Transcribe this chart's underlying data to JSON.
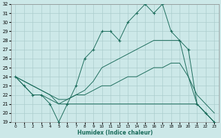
{
  "bg_color": "#cce8e8",
  "grid_color": "#aacccc",
  "line_color": "#1a6b5a",
  "xlabel": "Humidex (Indice chaleur)",
  "ylim": [
    19,
    32
  ],
  "xlim": [
    -0.5,
    23.5
  ],
  "yticks": [
    19,
    20,
    21,
    22,
    23,
    24,
    25,
    26,
    27,
    28,
    29,
    30,
    31,
    32
  ],
  "xticks": [
    0,
    1,
    2,
    3,
    4,
    5,
    6,
    7,
    8,
    9,
    10,
    11,
    12,
    13,
    14,
    15,
    16,
    17,
    18,
    19,
    20,
    21,
    22,
    23
  ],
  "series": [
    {
      "x": [
        0,
        1,
        2,
        3,
        4,
        5,
        6,
        7,
        8,
        9,
        10,
        11,
        12,
        13,
        14,
        15,
        16,
        17,
        18,
        19,
        20,
        21,
        22,
        23
      ],
      "y": [
        24,
        23,
        22,
        22,
        21,
        19,
        21,
        23,
        26,
        27,
        29,
        29,
        28,
        30,
        31,
        32,
        31,
        32,
        29,
        28,
        27,
        21,
        20,
        19
      ],
      "marker": "+"
    },
    {
      "x": [
        0,
        5,
        10,
        15,
        19,
        20,
        21,
        22,
        23
      ],
      "y": [
        24,
        21,
        25,
        27,
        28,
        24,
        21,
        20,
        19
      ],
      "marker": null,
      "smooth": true,
      "full_x": [
        0,
        1,
        2,
        3,
        4,
        5,
        6,
        7,
        8,
        9,
        10,
        11,
        12,
        13,
        14,
        15,
        16,
        17,
        18,
        19,
        20,
        21,
        22,
        23
      ],
      "full_y": [
        24,
        23.5,
        23,
        22.5,
        22,
        21,
        21.5,
        22,
        22.5,
        23.5,
        25,
        25.5,
        26,
        26.5,
        27,
        27.5,
        28,
        28,
        28,
        28,
        24,
        21,
        20,
        19
      ]
    },
    {
      "x": [
        0,
        1,
        2,
        3,
        4,
        5,
        6,
        7,
        8,
        9,
        10,
        11,
        12,
        13,
        14,
        15,
        16,
        17,
        18,
        19,
        20,
        21,
        22,
        23
      ],
      "y": [
        24,
        23.5,
        23,
        22.5,
        22,
        21.5,
        21.5,
        22,
        22,
        22.5,
        23,
        23,
        23.5,
        24,
        24,
        24.5,
        25,
        25,
        25.5,
        25.5,
        24,
        22,
        21,
        20
      ],
      "marker": null
    },
    {
      "x": [
        0,
        1,
        2,
        3,
        4,
        5,
        6,
        7,
        8,
        9,
        10,
        11,
        12,
        13,
        14,
        15,
        16,
        17,
        18,
        19,
        20,
        21,
        22,
        23
      ],
      "y": [
        24,
        23,
        22,
        22,
        21.5,
        21,
        21,
        21,
        21,
        21,
        21,
        21,
        21,
        21,
        21,
        21,
        21,
        21,
        21,
        21,
        21,
        21,
        20,
        19
      ],
      "marker": null
    }
  ]
}
